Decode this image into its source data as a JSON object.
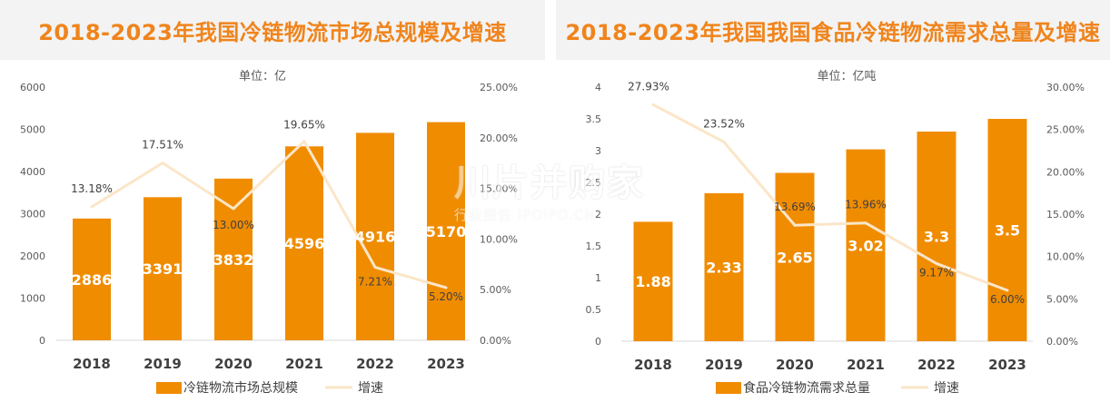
{
  "chart_data": [
    {
      "type": "bar",
      "title": "2018-2023年我国冷链物流市场总规模及增速",
      "unit_label": "单位：亿",
      "categories": [
        "2018",
        "2019",
        "2020",
        "2021",
        "2022",
        "2023"
      ],
      "series": [
        {
          "name": "冷链物流市场总规模",
          "type": "bar",
          "axis": "left",
          "values": [
            2886,
            3391,
            3832,
            4596,
            4916,
            5170
          ],
          "labels": [
            "2886",
            "3391",
            "3832",
            "4596",
            "4916",
            "5170"
          ]
        },
        {
          "name": "增速",
          "type": "line",
          "axis": "right",
          "values": [
            13.18,
            17.51,
            13.0,
            19.65,
            7.21,
            5.2
          ],
          "labels": [
            "13.18%",
            "17.51%",
            "13.00%",
            "19.65%",
            "7.21%",
            "5.20%"
          ]
        }
      ],
      "ylim": [
        0,
        6000
      ],
      "yticks": [
        "0",
        "1000",
        "2000",
        "3000",
        "4000",
        "5000",
        "6000"
      ],
      "y2lim": [
        0,
        25
      ],
      "y2ticks": [
        "0.00%",
        "5.00%",
        "10.00%",
        "15.00%",
        "20.00%",
        "25.00%"
      ],
      "legend_position": "bottom",
      "grid": false,
      "colors": {
        "bar": "#f08c00",
        "line": "#fbe6c8",
        "bar_label": "#ffffff",
        "axis_text": "#595959"
      }
    },
    {
      "type": "bar",
      "title": "2018-2023年我国我国食品冷链物流需求总量及增速",
      "unit_label": "单位：亿吨",
      "categories": [
        "2018",
        "2019",
        "2020",
        "2021",
        "2022",
        "2023"
      ],
      "series": [
        {
          "name": "食品冷链物流需求总量",
          "type": "bar",
          "axis": "left",
          "values": [
            1.88,
            2.33,
            2.65,
            3.02,
            3.3,
            3.5
          ],
          "labels": [
            "1.88",
            "2.33",
            "2.65",
            "3.02",
            "3.3",
            "3.5"
          ]
        },
        {
          "name": "增速",
          "type": "line",
          "axis": "right",
          "values": [
            27.93,
            23.52,
            13.69,
            13.96,
            9.17,
            6.0
          ],
          "labels": [
            "27.93%",
            "23.52%",
            "13.69%",
            "13.96%",
            "9.17%",
            "6.00%"
          ]
        }
      ],
      "ylim": [
        0,
        4
      ],
      "yticks": [
        "0",
        "0.5",
        "1",
        "1.5",
        "2",
        "2.5",
        "3",
        "3.5",
        "4"
      ],
      "y2lim": [
        0,
        30
      ],
      "y2ticks": [
        "0.00%",
        "5.00%",
        "10.00%",
        "15.00%",
        "20.00%",
        "25.00%",
        "30.00%"
      ],
      "legend_position": "bottom",
      "grid": false,
      "colors": {
        "bar": "#f08c00",
        "line": "#fbe6c8",
        "bar_label": "#ffffff",
        "axis_text": "#595959"
      }
    }
  ],
  "watermark": {
    "main": "川片并购家",
    "sub": "行业报告 IPOIPO.CN"
  }
}
